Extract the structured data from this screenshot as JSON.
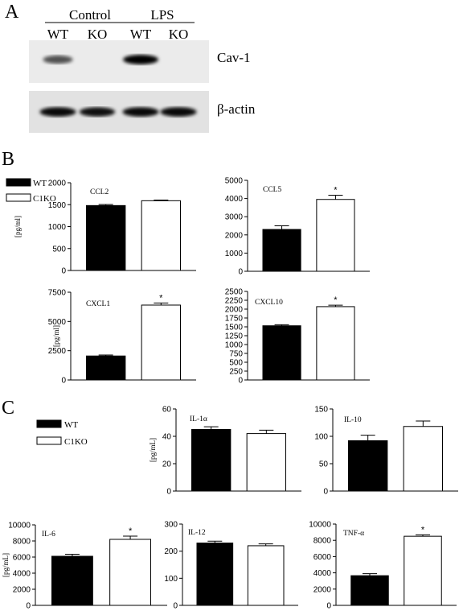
{
  "panels": {
    "A": {
      "letter": "A",
      "groups": [
        "Control",
        "LPS"
      ],
      "lanes": [
        "WT",
        "KO",
        "WT",
        "KO"
      ],
      "blots": [
        {
          "label": "Cav-1",
          "band_intensity": [
            0.55,
            0.0,
            1.0,
            0.0
          ]
        },
        {
          "label": "β-actin",
          "band_intensity": [
            0.95,
            0.9,
            0.95,
            0.95
          ]
        }
      ]
    },
    "B": {
      "letter": "B",
      "legend": [
        {
          "label": "WT",
          "fill": "#000000"
        },
        {
          "label": "C1KO",
          "fill": "#ffffff"
        }
      ]
    },
    "C": {
      "letter": "C",
      "legend": [
        {
          "label": "WT",
          "fill": "#000000"
        },
        {
          "label": "C1KO",
          "fill": "#ffffff"
        }
      ]
    }
  },
  "chart_data": [
    {
      "type": "bar",
      "panel": "B",
      "title": "CCL2",
      "ylabel": "[pg/ml]",
      "categories": [
        "WT",
        "C1KO"
      ],
      "values": [
        1480,
        1590
      ],
      "errors": [
        25,
        15
      ],
      "ylim": [
        0,
        2000
      ],
      "yticks": [
        "0",
        "500",
        "1000",
        "1500",
        "2000"
      ],
      "significant": [
        false,
        false
      ],
      "colors": [
        "#000000",
        "#ffffff"
      ]
    },
    {
      "type": "bar",
      "panel": "B",
      "title": "CCL5",
      "ylabel": "",
      "categories": [
        "WT",
        "C1KO"
      ],
      "values": [
        2300,
        3950
      ],
      "errors": [
        200,
        230
      ],
      "ylim": [
        0,
        5000
      ],
      "yticks": [
        "0",
        "1000",
        "2000",
        "3000",
        "4000",
        "5000"
      ],
      "significant": [
        false,
        true
      ],
      "colors": [
        "#000000",
        "#ffffff"
      ]
    },
    {
      "type": "bar",
      "panel": "B",
      "title": "CXCL1",
      "ylabel": "[pg/ml]",
      "categories": [
        "WT",
        "C1KO"
      ],
      "values": [
        2050,
        6400
      ],
      "errors": [
        80,
        180
      ],
      "ylim": [
        0,
        7500
      ],
      "yticks": [
        "0",
        "2500",
        "5000",
        "7500"
      ],
      "significant": [
        false,
        true
      ],
      "colors": [
        "#000000",
        "#ffffff"
      ]
    },
    {
      "type": "bar",
      "panel": "B",
      "title": "CXCL10",
      "ylabel": "",
      "categories": [
        "WT",
        "C1KO"
      ],
      "values": [
        1530,
        2070
      ],
      "errors": [
        30,
        40
      ],
      "ylim": [
        0,
        2500
      ],
      "yticks": [
        "0",
        "250",
        "500",
        "750",
        "1000",
        "1250",
        "1500",
        "1750",
        "2000",
        "2250",
        "2500"
      ],
      "significant": [
        false,
        true
      ],
      "colors": [
        "#000000",
        "#ffffff"
      ]
    },
    {
      "type": "bar",
      "panel": "C",
      "title": "IL-1α",
      "ylabel": "[pg/mL]",
      "categories": [
        "WT",
        "C1KO"
      ],
      "values": [
        45,
        42
      ],
      "errors": [
        2,
        2.5
      ],
      "ylim": [
        0,
        60
      ],
      "yticks": [
        "0",
        "20",
        "40",
        "60"
      ],
      "significant": [
        false,
        false
      ],
      "colors": [
        "#000000",
        "#ffffff"
      ]
    },
    {
      "type": "bar",
      "panel": "C",
      "title": "IL-10",
      "ylabel": "",
      "categories": [
        "WT",
        "C1KO"
      ],
      "values": [
        92,
        118
      ],
      "errors": [
        10,
        10
      ],
      "ylim": [
        0,
        150
      ],
      "yticks": [
        "0",
        "50",
        "100",
        "150"
      ],
      "significant": [
        false,
        false
      ],
      "colors": [
        "#000000",
        "#ffffff"
      ]
    },
    {
      "type": "bar",
      "panel": "C",
      "title": "IL-6",
      "ylabel": "[pg/mL]",
      "categories": [
        "WT",
        "C1KO"
      ],
      "values": [
        6100,
        8200
      ],
      "errors": [
        250,
        400
      ],
      "ylim": [
        0,
        10000
      ],
      "yticks": [
        "0",
        "2000",
        "4000",
        "6000",
        "8000",
        "10000"
      ],
      "significant": [
        false,
        true
      ],
      "colors": [
        "#000000",
        "#ffffff"
      ]
    },
    {
      "type": "bar",
      "panel": "C",
      "title": "IL-12",
      "ylabel": "",
      "categories": [
        "WT",
        "C1KO"
      ],
      "values": [
        230,
        220
      ],
      "errors": [
        7,
        7
      ],
      "ylim": [
        0,
        300
      ],
      "yticks": [
        "0",
        "100",
        "200",
        "300"
      ],
      "significant": [
        false,
        false
      ],
      "colors": [
        "#000000",
        "#ffffff"
      ]
    },
    {
      "type": "bar",
      "panel": "C",
      "title": "TNF-α",
      "ylabel": "",
      "categories": [
        "WT",
        "C1KO"
      ],
      "values": [
        3650,
        8500
      ],
      "errors": [
        250,
        180
      ],
      "ylim": [
        0,
        10000
      ],
      "yticks": [
        "0",
        "2000",
        "4000",
        "6000",
        "8000",
        "10000"
      ],
      "significant": [
        false,
        true
      ],
      "colors": [
        "#000000",
        "#ffffff"
      ]
    }
  ]
}
